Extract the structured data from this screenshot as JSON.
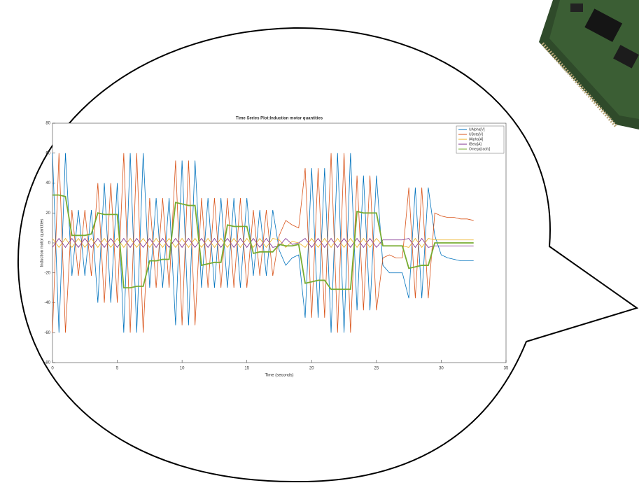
{
  "chart_data": {
    "type": "line",
    "title": "Time Series Plot:Induction motor quantities",
    "xlabel": "Time (seconds)",
    "ylabel": "Induction motor quantities",
    "xlim": [
      0,
      35
    ],
    "xticks": [
      0,
      5,
      10,
      15,
      20,
      25,
      30,
      35
    ],
    "ylim": [
      -80,
      80
    ],
    "yticks": [
      -80,
      -60,
      -40,
      -20,
      0,
      20,
      40,
      60,
      80
    ],
    "grid": false,
    "legend": "upper right",
    "x": [
      0,
      0.5,
      1,
      1.5,
      2,
      2.5,
      3,
      3.5,
      4,
      4.5,
      5,
      5.5,
      6,
      6.5,
      7,
      7.5,
      8,
      8.5,
      9,
      9.5,
      10,
      10.5,
      11,
      11.5,
      12,
      12.5,
      13,
      13.5,
      14,
      14.5,
      15,
      15.5,
      16,
      16.5,
      17,
      17.5,
      18,
      18.5,
      19,
      19.5,
      20,
      20.5,
      21,
      21.5,
      22,
      22.5,
      23,
      23.5,
      24,
      24.5,
      25,
      25.5,
      26,
      26.5,
      27,
      27.5,
      28,
      28.5,
      29,
      29.5,
      30,
      30.5,
      31,
      31.5,
      32,
      32.5
    ],
    "series": [
      {
        "name": "UAlpha[V]",
        "color": "#0072bd",
        "values": [
          60,
          -60,
          60,
          -22,
          22,
          -22,
          22,
          -40,
          40,
          -40,
          40,
          -60,
          60,
          -60,
          60,
          -30,
          30,
          -30,
          30,
          -55,
          55,
          -55,
          55,
          -30,
          30,
          -30,
          30,
          -30,
          30,
          -30,
          30,
          -22,
          22,
          -22,
          22,
          -5,
          -15,
          -10,
          -8,
          -50,
          50,
          -50,
          50,
          -60,
          60,
          -60,
          60,
          -45,
          45,
          -45,
          45,
          -15,
          -20,
          -20,
          -20,
          -37,
          37,
          -37,
          37,
          5,
          -8,
          -10,
          -11,
          -12,
          -12,
          -12
        ]
      },
      {
        "name": "UBeta[V]",
        "color": "#d95319",
        "values": [
          -60,
          60,
          -60,
          22,
          -22,
          22,
          -22,
          40,
          -40,
          40,
          -40,
          60,
          -60,
          60,
          -60,
          30,
          -30,
          30,
          -30,
          55,
          -55,
          55,
          -55,
          30,
          -30,
          30,
          -30,
          30,
          -30,
          30,
          -30,
          22,
          -22,
          22,
          -22,
          5,
          15,
          12,
          10,
          50,
          -50,
          50,
          -50,
          60,
          -60,
          60,
          -60,
          45,
          -45,
          45,
          -45,
          -10,
          -8,
          -10,
          -10,
          37,
          -37,
          37,
          -37,
          20,
          18,
          17,
          17,
          16,
          16,
          15
        ]
      },
      {
        "name": "IAlpha[A]",
        "color": "#edb120",
        "values": [
          3,
          -3,
          3,
          -3,
          3,
          -3,
          3,
          -3,
          3,
          -3,
          3,
          -3,
          3,
          -3,
          3,
          -3,
          3,
          -3,
          3,
          -3,
          3,
          -3,
          3,
          -3,
          3,
          -3,
          3,
          -3,
          3,
          -3,
          3,
          -3,
          3,
          -3,
          3,
          2,
          -3,
          1,
          0,
          -3,
          3,
          -3,
          3,
          -3,
          3,
          -3,
          3,
          -3,
          3,
          -3,
          3,
          -2,
          -2,
          -2,
          -2,
          -3,
          3,
          -3,
          3,
          2,
          2,
          2,
          2,
          2,
          2,
          2
        ]
      },
      {
        "name": "IBeta[A]",
        "color": "#7e2f8e",
        "values": [
          -3,
          3,
          -3,
          3,
          -3,
          3,
          -3,
          3,
          -3,
          3,
          -3,
          3,
          -3,
          3,
          -3,
          3,
          -3,
          3,
          -3,
          3,
          -3,
          3,
          -3,
          3,
          -3,
          3,
          -3,
          3,
          -3,
          3,
          -3,
          3,
          -3,
          3,
          -3,
          -2,
          3,
          -1,
          0,
          3,
          -3,
          3,
          -3,
          3,
          -3,
          3,
          -3,
          3,
          -3,
          3,
          -3,
          2,
          2,
          2,
          2,
          3,
          -3,
          3,
          -3,
          -2,
          -2,
          -2,
          -2,
          -2,
          -2,
          -2
        ]
      },
      {
        "name": "Omega[rad/s]",
        "color": "#77ac30",
        "values": [
          32,
          32,
          31,
          5,
          5,
          5,
          6,
          20,
          19,
          19,
          19,
          -30,
          -30,
          -29,
          -29,
          -12,
          -12,
          -11,
          -11,
          27,
          26,
          25,
          25,
          -15,
          -14,
          -13,
          -13,
          12,
          11,
          11,
          11,
          -7,
          -6,
          -6,
          -6,
          -1,
          -2,
          -2,
          -1,
          -27,
          -26,
          -25,
          -25,
          -31,
          -31,
          -31,
          -31,
          21,
          20,
          20,
          20,
          -2,
          -2,
          -2,
          -2,
          -17,
          -16,
          -15,
          -15,
          0,
          0,
          0,
          0,
          0,
          0,
          0
        ]
      }
    ]
  }
}
